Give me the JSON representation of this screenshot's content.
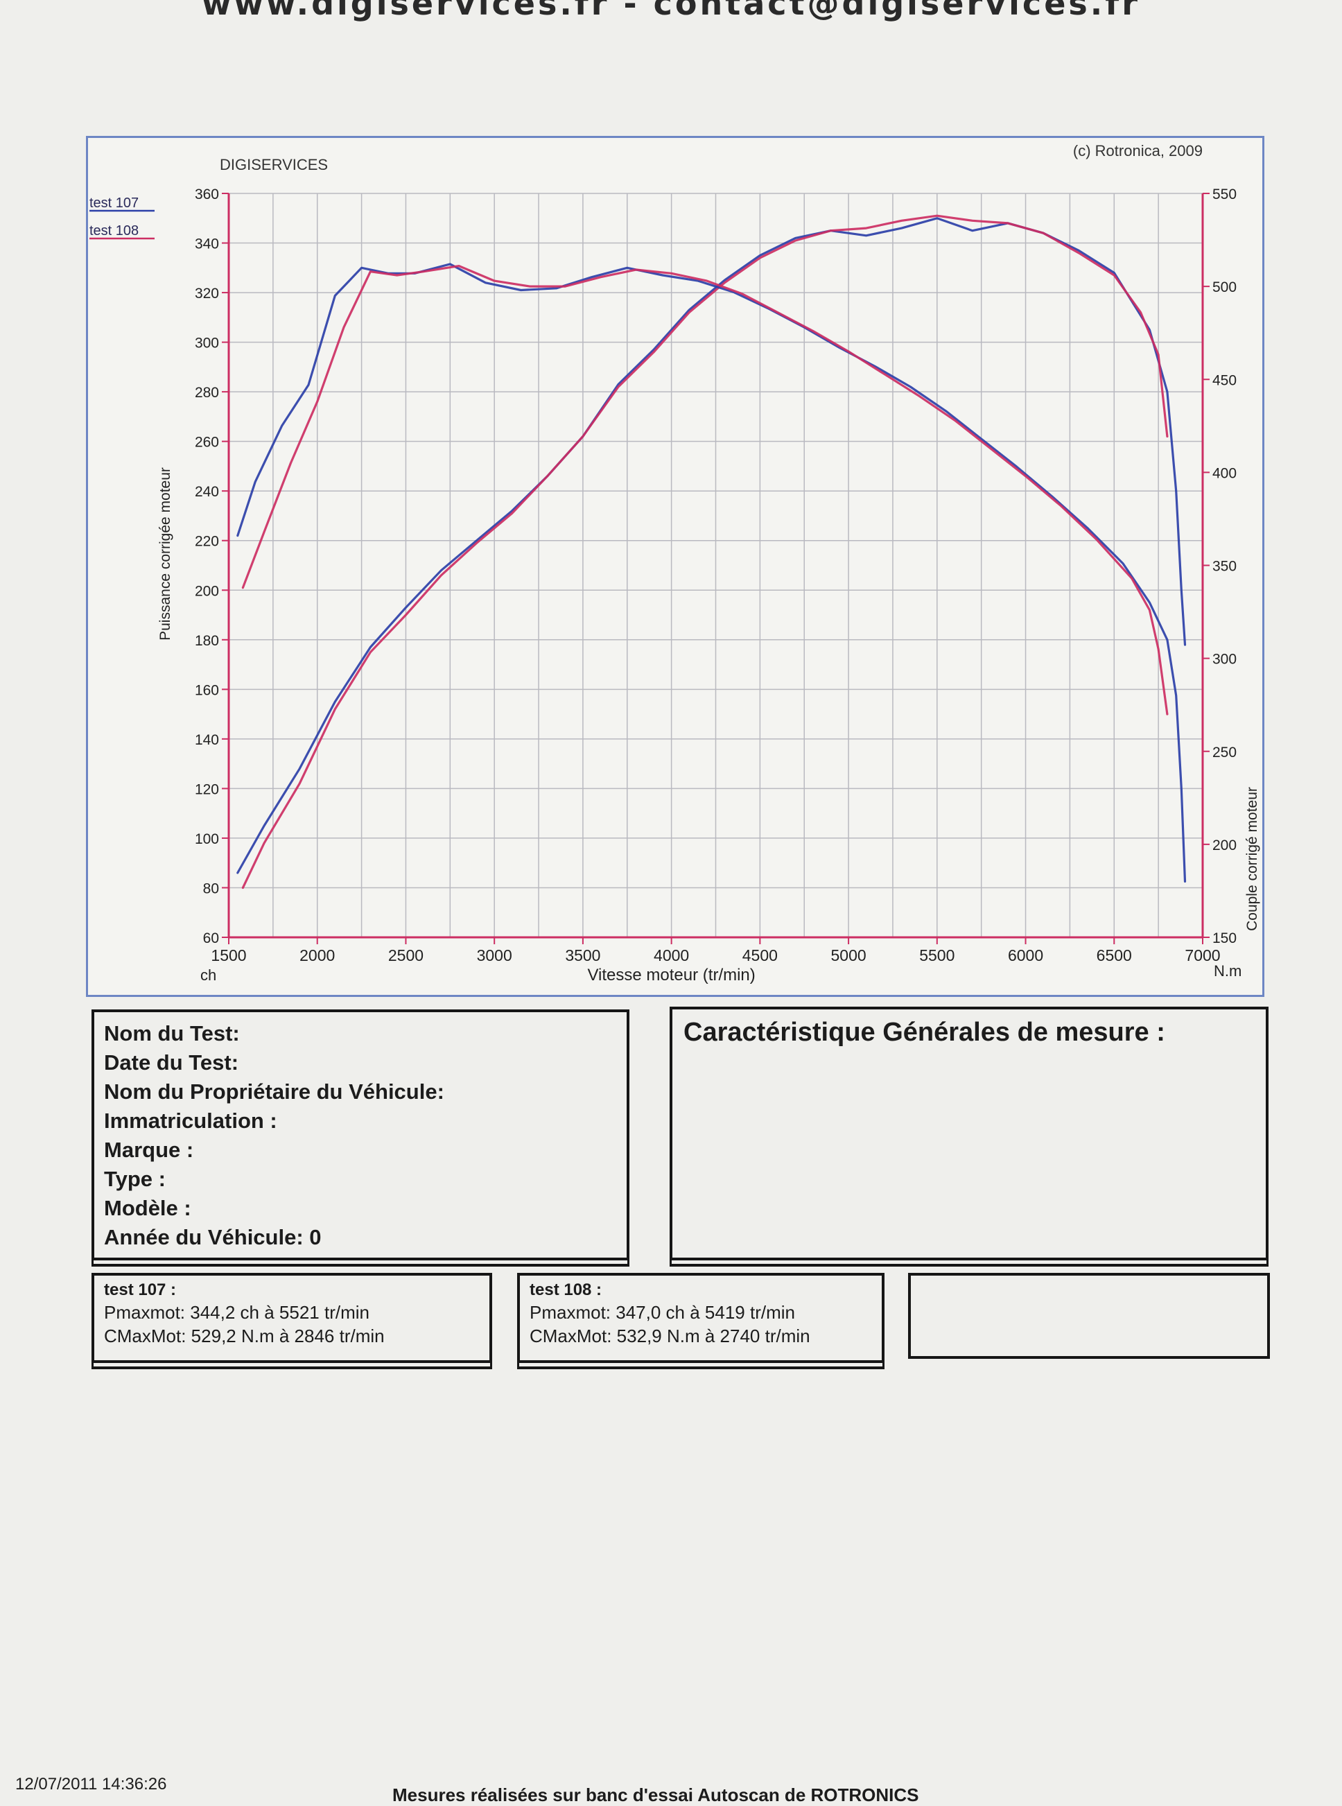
{
  "header": {
    "url_text": "www.digiservices.fr - contact@digiservices.fr"
  },
  "chart_data": {
    "type": "line",
    "brand_label": "DIGISERVICES",
    "copyright": "(c) Rotronica, 2009",
    "xlabel": "Vitesse moteur (tr/min)",
    "ylabel_left": "Puissance corrigée moteur",
    "ylabel_right": "Couple corrigé moteur",
    "unit_left": "ch",
    "unit_right": "N.m",
    "xlim": [
      1500,
      7000
    ],
    "ylim_left": [
      60,
      360
    ],
    "ylim_right": [
      150,
      550
    ],
    "x_ticks": [
      1500,
      2000,
      2500,
      3000,
      3500,
      4000,
      4500,
      5000,
      5500,
      6000,
      6500,
      7000
    ],
    "y_left_ticks": [
      60,
      80,
      100,
      120,
      140,
      160,
      180,
      200,
      220,
      240,
      260,
      280,
      300,
      320,
      340,
      360
    ],
    "y_right_ticks": [
      150,
      200,
      250,
      300,
      350,
      400,
      450,
      500,
      550
    ],
    "grid": true,
    "legend_position": "top-left",
    "series": [
      {
        "name": "test 107",
        "color": "#2b3fa8",
        "axis": "left",
        "quantity": "power",
        "x": [
          1550,
          1700,
          1900,
          2100,
          2300,
          2500,
          2700,
          2900,
          3100,
          3300,
          3500,
          3700,
          3900,
          4100,
          4300,
          4500,
          4700,
          4900,
          5100,
          5300,
          5500,
          5700,
          5900,
          6100,
          6300,
          6500,
          6700,
          6800,
          6850,
          6880,
          6900
        ],
        "values": [
          86,
          105,
          128,
          155,
          177,
          193,
          208,
          220,
          232,
          246,
          262,
          283,
          297,
          313,
          325,
          335,
          342,
          345,
          343,
          346,
          350,
          345,
          348,
          344,
          337,
          328,
          305,
          280,
          240,
          200,
          178
        ]
      },
      {
        "name": "test 108",
        "color": "#cc2e63",
        "axis": "left",
        "quantity": "power",
        "x": [
          1580,
          1700,
          1900,
          2100,
          2300,
          2500,
          2700,
          2900,
          3100,
          3300,
          3500,
          3700,
          3900,
          4100,
          4300,
          4500,
          4700,
          4900,
          5100,
          5300,
          5500,
          5700,
          5900,
          6100,
          6300,
          6500,
          6650,
          6750,
          6800
        ],
        "values": [
          80,
          98,
          122,
          152,
          175,
          190,
          206,
          219,
          231,
          246,
          262,
          282,
          296,
          312,
          324,
          334,
          341,
          345,
          346,
          349,
          351,
          349,
          348,
          344,
          336,
          327,
          312,
          295,
          262
        ]
      },
      {
        "name": "test 107",
        "color": "#2b3fa8",
        "axis": "right",
        "quantity": "torque",
        "x": [
          1550,
          1650,
          1800,
          1950,
          2100,
          2250,
          2400,
          2550,
          2750,
          2950,
          3150,
          3350,
          3550,
          3750,
          3950,
          4150,
          4350,
          4550,
          4750,
          4950,
          5150,
          5350,
          5550,
          5750,
          5950,
          6150,
          6350,
          6550,
          6700,
          6800,
          6850,
          6880,
          6900
        ],
        "values": [
          366,
          395,
          425,
          447,
          495,
          510,
          507,
          507,
          512,
          502,
          498,
          499,
          505,
          510,
          506,
          503,
          497,
          488,
          478,
          467,
          457,
          446,
          433,
          418,
          403,
          387,
          370,
          351,
          330,
          310,
          280,
          230,
          180
        ]
      },
      {
        "name": "test 108",
        "color": "#cc2e63",
        "axis": "right",
        "quantity": "torque",
        "x": [
          1580,
          1700,
          1850,
          2000,
          2150,
          2300,
          2450,
          2600,
          2800,
          3000,
          3200,
          3400,
          3600,
          3800,
          4000,
          4200,
          4400,
          4600,
          4800,
          5000,
          5200,
          5400,
          5600,
          5800,
          6000,
          6200,
          6400,
          6600,
          6700,
          6750,
          6800
        ],
        "values": [
          338,
          368,
          405,
          438,
          478,
          508,
          506,
          508,
          511,
          503,
          500,
          500,
          505,
          509,
          507,
          503,
          496,
          486,
          476,
          465,
          453,
          441,
          428,
          413,
          398,
          382,
          364,
          343,
          326,
          305,
          270
        ]
      }
    ]
  },
  "test_info": {
    "name_label": "Nom du Test:",
    "date_label": "Date du Test:",
    "owner_label": "Nom du Propriétaire du Véhicule:",
    "registration_label": "Immatriculation  :",
    "brand_label": "Marque  :",
    "type_label": "Type  :",
    "model_label": "Modèle  :",
    "year_label": "Année du Véhicule: 0"
  },
  "measurement": {
    "title": "Caractéristique Générales de mesure :"
  },
  "results": {
    "test107": {
      "title": "test 107 :",
      "pmax": "Pmaxmot: 344,2 ch à 5521 tr/min",
      "cmax": "CMaxMot: 529,2 N.m à 2846 tr/min"
    },
    "test108": {
      "title": "test 108 :",
      "pmax": "Pmaxmot: 347,0 ch à 5419 tr/min",
      "cmax": "CMaxMot: 532,9 N.m à 2740 tr/min"
    }
  },
  "footer": {
    "datetime": "12/07/2011 14:36:26",
    "note": "Mesures réalisées sur banc d'essai Autoscan de ROTRONICS"
  }
}
